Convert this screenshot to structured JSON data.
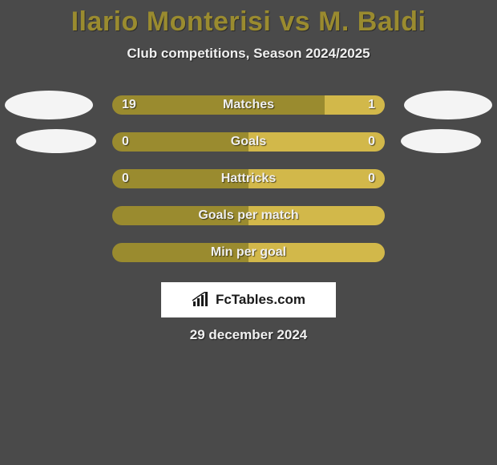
{
  "title": "Ilario Monterisi vs M. Baldi",
  "subtitle": "Club competitions, Season 2024/2025",
  "date": "29 december 2024",
  "logo_text": "FcTables.com",
  "colors": {
    "background": "#4a4a4a",
    "title": "#9a8b2f",
    "text": "#f0f0f0",
    "bar_left": "#9a8b2f",
    "bar_right": "#d2b84a",
    "avatar": "#f4f4f4",
    "logo_bg": "#ffffff",
    "logo_text": "#1a1a1a"
  },
  "rows": [
    {
      "label": "Matches",
      "left_value": "19",
      "right_value": "1",
      "left_pct": 78,
      "right_pct": 22,
      "avatar_size": "large",
      "show_avatars": true
    },
    {
      "label": "Goals",
      "left_value": "0",
      "right_value": "0",
      "left_pct": 50,
      "right_pct": 50,
      "avatar_size": "small",
      "show_avatars": true
    },
    {
      "label": "Hattricks",
      "left_value": "0",
      "right_value": "0",
      "left_pct": 50,
      "right_pct": 50,
      "show_avatars": false
    },
    {
      "label": "Goals per match",
      "left_value": "",
      "right_value": "",
      "left_pct": 50,
      "right_pct": 50,
      "show_avatars": false
    },
    {
      "label": "Min per goal",
      "left_value": "",
      "right_value": "",
      "left_pct": 50,
      "right_pct": 50,
      "show_avatars": false
    }
  ]
}
